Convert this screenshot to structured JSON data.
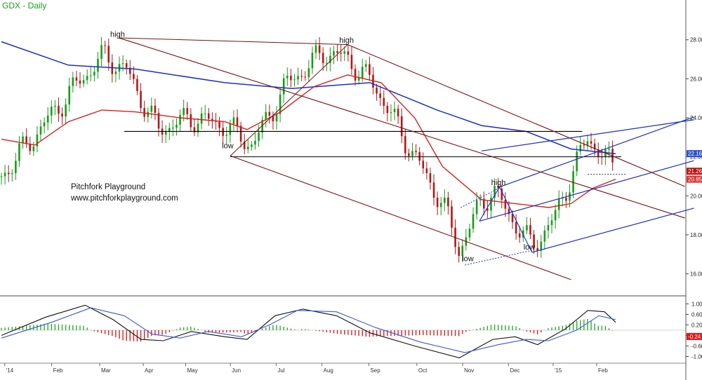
{
  "header": {
    "title": "GDX - Daily"
  },
  "watermark": {
    "line1": "Pitchfork Playground",
    "line2": "www.pitchforkplayground.com"
  },
  "colors": {
    "up_candle": "#1a9a1a",
    "down_candle": "#b01818",
    "ma_slow": "#1a2fc4",
    "ma_fast": "#d62020",
    "pitchfork_1": "#7a1010",
    "pitchfork_2": "#1a2fc4",
    "horizontal": "#000000",
    "macd": "#111111",
    "signal": "#3a5ad8",
    "hist_up": "#2ea82e",
    "hist_down": "#d62020",
    "badge_ma_slow": "#2a4fd0",
    "badge_price": "#c01010",
    "badge_ma_fast": "#d83030",
    "badge_hist": "#e01818"
  },
  "chart_data": [
    {
      "type": "candlestick",
      "title": "GDX - Daily",
      "x_axis_labels": [
        "'14",
        "Feb",
        "Mar",
        "Apr",
        "May",
        "Jun",
        "Jul",
        "Aug",
        "Sep",
        "Oct",
        "Nov",
        "Dec",
        "'15",
        "Feb"
      ],
      "y_tick_labels": [
        "16.00",
        "18.00",
        "20.00",
        "22.00",
        "24.00",
        "26.00",
        "28.00"
      ],
      "ylim": [
        15.3,
        29.5
      ],
      "price_path_approx": [
        {
          "t": 0,
          "close": 21.0
        },
        {
          "t": 20,
          "close": 22.4
        },
        {
          "t": 50,
          "close": 24.5
        },
        {
          "t": 72,
          "close": 26.0
        },
        {
          "t": 92,
          "close": 27.2
        },
        {
          "t": 112,
          "close": 26.4
        },
        {
          "t": 125,
          "close": 25.0
        },
        {
          "t": 140,
          "close": 23.4
        },
        {
          "t": 170,
          "close": 24.0
        },
        {
          "t": 200,
          "close": 23.6
        },
        {
          "t": 225,
          "close": 22.6
        },
        {
          "t": 255,
          "close": 25.7
        },
        {
          "t": 290,
          "close": 27.4
        },
        {
          "t": 310,
          "close": 27.0
        },
        {
          "t": 335,
          "close": 25.6
        },
        {
          "t": 370,
          "close": 22.0
        },
        {
          "t": 395,
          "close": 19.6
        },
        {
          "t": 410,
          "close": 17.2
        },
        {
          "t": 428,
          "close": 19.5
        },
        {
          "t": 440,
          "close": 20.3
        },
        {
          "t": 455,
          "close": 19.0
        },
        {
          "t": 475,
          "close": 17.4
        },
        {
          "t": 495,
          "close": 18.8
        },
        {
          "t": 510,
          "close": 21.0
        },
        {
          "t": 525,
          "close": 23.0
        },
        {
          "t": 540,
          "close": 22.0
        },
        {
          "t": 550,
          "close": 21.26
        }
      ],
      "series": [
        {
          "name": "",
          "kind": "ma_slow",
          "last_value": 22.16,
          "values_approx": [
            [
              0,
              27.9
            ],
            [
              60,
              26.7
            ],
            [
              120,
              26.5
            ],
            [
              200,
              25.8
            ],
            [
              260,
              25.5
            ],
            [
              330,
              25.8
            ],
            [
              390,
              24.4
            ],
            [
              430,
              23.6
            ],
            [
              470,
              23.3
            ],
            [
              510,
              22.4
            ],
            [
              550,
              22.16
            ]
          ]
        },
        {
          "name": "",
          "kind": "ma_fast",
          "last_value": 20.85,
          "values_approx": [
            [
              0,
              22.9
            ],
            [
              30,
              22.6
            ],
            [
              60,
              23.8
            ],
            [
              90,
              24.4
            ],
            [
              120,
              24.3
            ],
            [
              160,
              24.0
            ],
            [
              200,
              23.8
            ],
            [
              220,
              23.4
            ],
            [
              250,
              24.3
            ],
            [
              280,
              25.6
            ],
            [
              310,
              26.2
            ],
            [
              340,
              25.8
            ],
            [
              370,
              24.0
            ],
            [
              395,
              21.5
            ],
            [
              430,
              19.8
            ],
            [
              460,
              19.6
            ],
            [
              490,
              19.4
            ],
            [
              510,
              19.6
            ],
            [
              530,
              20.4
            ],
            [
              550,
              20.85
            ]
          ]
        }
      ],
      "price_badges": [
        "22.16",
        "21.26",
        "20.85"
      ],
      "annotations": [
        {
          "text": "high",
          "t": 105,
          "price": 28.0
        },
        {
          "text": "high",
          "t": 310,
          "price": 27.7
        },
        {
          "text": "low",
          "t": 205,
          "price": 22.3
        },
        {
          "text": "high",
          "t": 446,
          "price": 20.4
        },
        {
          "text": "low",
          "t": 420,
          "price": 16.5
        },
        {
          "text": "low",
          "t": 475,
          "price": 17.1
        }
      ],
      "horizontal_levels": [
        23.3,
        22.0,
        21.1
      ],
      "grid": false
    },
    {
      "type": "macd",
      "y_tick_labels": [
        "1.00",
        "0.60",
        "0.20",
        "-0.20",
        "-0.60",
        "-1.00"
      ],
      "ylim": [
        -1.2,
        1.25
      ],
      "hist_badge": "-0.24",
      "macd_approx": [
        [
          0,
          -0.2
        ],
        [
          40,
          0.5
        ],
        [
          75,
          0.95
        ],
        [
          100,
          0.4
        ],
        [
          125,
          -0.35
        ],
        [
          145,
          -0.4
        ],
        [
          170,
          -0.05
        ],
        [
          200,
          -0.25
        ],
        [
          220,
          -0.35
        ],
        [
          245,
          0.55
        ],
        [
          270,
          0.8
        ],
        [
          300,
          0.55
        ],
        [
          330,
          -0.1
        ],
        [
          370,
          -0.6
        ],
        [
          410,
          -1.05
        ],
        [
          440,
          -0.35
        ],
        [
          460,
          -0.25
        ],
        [
          480,
          -0.55
        ],
        [
          505,
          0.05
        ],
        [
          525,
          0.75
        ],
        [
          540,
          0.7
        ],
        [
          550,
          0.3
        ]
      ],
      "signal_approx": [
        [
          0,
          -0.3
        ],
        [
          45,
          0.3
        ],
        [
          80,
          0.85
        ],
        [
          110,
          0.55
        ],
        [
          135,
          -0.15
        ],
        [
          160,
          -0.3
        ],
        [
          185,
          -0.05
        ],
        [
          215,
          -0.25
        ],
        [
          240,
          0.2
        ],
        [
          265,
          0.75
        ],
        [
          300,
          0.7
        ],
        [
          335,
          0.1
        ],
        [
          375,
          -0.45
        ],
        [
          415,
          -0.85
        ],
        [
          445,
          -0.55
        ],
        [
          470,
          -0.35
        ],
        [
          490,
          -0.4
        ],
        [
          515,
          0.0
        ],
        [
          535,
          0.55
        ],
        [
          550,
          0.4
        ]
      ]
    }
  ]
}
